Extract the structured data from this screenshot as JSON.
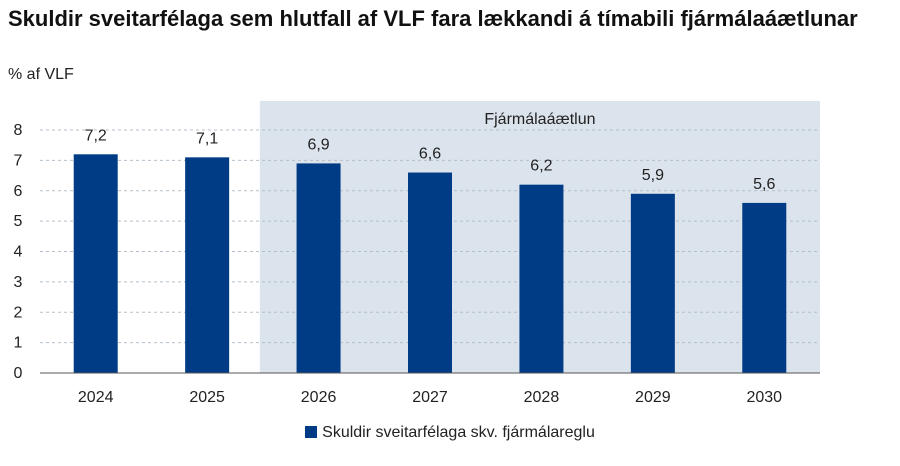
{
  "colors": {
    "bar": "#003c85",
    "forecast_band": "#dbe3ed",
    "grid": "#b5c0cc",
    "axis": "#555555",
    "text": "#222222"
  },
  "chart_data": {
    "type": "bar",
    "title": "Skuldir sveitarfélaga sem hlutfall af VLF fara lækkandi á tímabili fjármálaáætlunar",
    "subtitle": "% af VLF",
    "categories": [
      "2024",
      "2025",
      "2026",
      "2027",
      "2028",
      "2029",
      "2030"
    ],
    "series": [
      {
        "name": "Skuldir sveitarfélaga skv. fjármálareglu",
        "values": [
          7.2,
          7.1,
          6.9,
          6.6,
          6.2,
          5.9,
          5.6
        ],
        "labels": [
          "7,2",
          "7,1",
          "6,9",
          "6,6",
          "6,2",
          "5,9",
          "5,6"
        ]
      }
    ],
    "ylim": [
      0,
      8
    ],
    "yticks": [
      0,
      1,
      2,
      3,
      4,
      5,
      6,
      7,
      8
    ],
    "grid": true,
    "legend_position": "bottom",
    "annotation": {
      "text": "Fjármálaáætlun",
      "from_category": "2026",
      "to_category": "2030"
    }
  }
}
